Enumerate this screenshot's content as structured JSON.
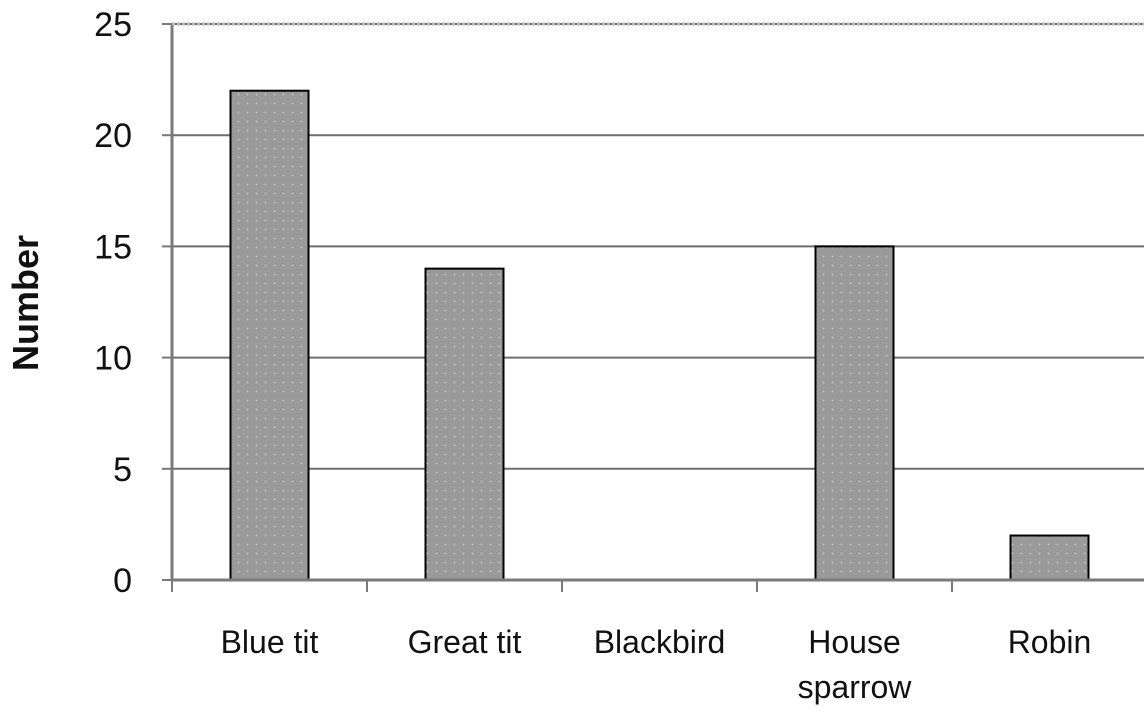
{
  "chart_data": {
    "type": "bar",
    "title": "",
    "xlabel": "",
    "ylabel": "Number",
    "categories": [
      "Blue tit",
      "Great tit",
      "Blackbird",
      "House sparrow",
      "Robin"
    ],
    "category_lines": [
      [
        "Blue tit"
      ],
      [
        "Great tit"
      ],
      [
        "Blackbird"
      ],
      [
        "House",
        "sparrow"
      ],
      [
        "Robin"
      ]
    ],
    "values": [
      22,
      14,
      0,
      15,
      2
    ],
    "ylim": [
      0,
      25
    ],
    "yticks": [
      "0",
      "5",
      "10",
      "15",
      "20",
      "25"
    ],
    "grid": true,
    "legend": "none",
    "colors": {
      "bar_fill": "#9a9a9a",
      "bar_dots": "#c8c8c8",
      "bar_edge": "#000000",
      "gridline": "#6e6e6e",
      "axis": "#7a7a7a"
    }
  }
}
